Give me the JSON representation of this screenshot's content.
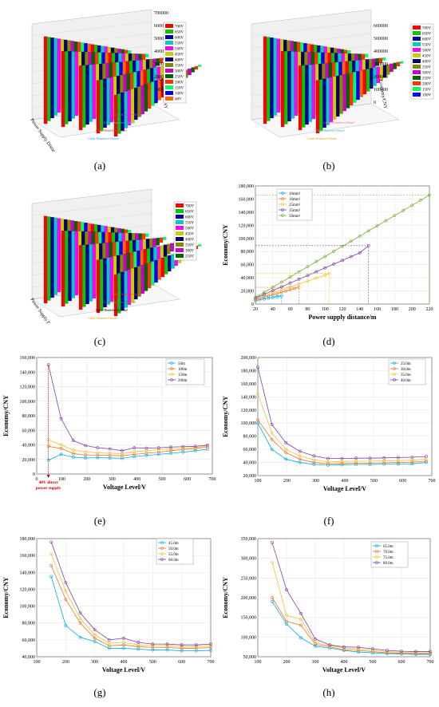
{
  "panel_labels": [
    "(a)",
    "(b)",
    "(c)",
    "(d)",
    "(e)",
    "(f)",
    "(g)",
    "(h)"
  ],
  "chart_data": [
    {
      "type": "bar3d",
      "panel": "(a)",
      "ylabel": "Economy/CNY",
      "xlabel": "Power Supply Distance/m",
      "zticks": [
        "0",
        "100000",
        "200000",
        "300000",
        "400000",
        "500000",
        "600000",
        "700000"
      ],
      "legend": [
        "700V",
        "650V",
        "600V",
        "550V",
        "500V",
        "450V",
        "400V",
        "350V",
        "300V",
        "250V",
        "200V",
        "150V",
        "100V",
        "48V"
      ],
      "annotations": [
        {
          "text": "Cable Diameter=16mm²",
          "color": "#3399ff"
        },
        {
          "text": "Cable Diameter=25mm²",
          "color": "#ff3333"
        },
        {
          "text": "Cable Diameter=35mm²",
          "color": "#33cccc"
        },
        {
          "text": "Cable Diameter=50mm²",
          "color": "#cc33cc"
        }
      ]
    },
    {
      "type": "bar3d",
      "panel": "(b)",
      "ylabel": "Economy/CNY",
      "zticks": [
        "0",
        "100000",
        "200000",
        "300000",
        "400000",
        "500000",
        "600000"
      ],
      "legend": [
        "700V",
        "650V",
        "600V",
        "550V",
        "500V",
        "450V",
        "400V",
        "350V",
        "300V",
        "250V",
        "200V",
        "150V",
        "100V"
      ],
      "annotations": [
        {
          "text": "Cable Diameter=4mm²",
          "color": "#ff9900"
        },
        {
          "text": "Cable Diameter=6mm²",
          "color": "#33cccc"
        },
        {
          "text": "Cable Diameter=10mm²",
          "color": "#ff66cc"
        }
      ]
    },
    {
      "type": "bar3d",
      "panel": "(c)",
      "xlabel": "Power Supply Distance/m",
      "legend": [
        "700V",
        "650V",
        "600V",
        "550V",
        "500V",
        "450V",
        "400V",
        "350V",
        "300V",
        "250V"
      ],
      "annotations": [
        {
          "text": "Cable Diameter=4mm²",
          "color": "#ff9900"
        },
        {
          "text": "Cable Diameter=2.5mm²",
          "color": "#000000"
        },
        {
          "text": "Cable Diameter=1.5mm²",
          "color": "#33aa33"
        },
        {
          "text": "Cable Diameter=1mm²",
          "color": "#ff3333"
        }
      ]
    },
    {
      "type": "line",
      "panel": "(d)",
      "xlabel": "Power supply distance/m",
      "ylabel": "Economy/CNY",
      "xlim": [
        20,
        220
      ],
      "ylim": [
        0,
        180000
      ],
      "xticks": [
        "20",
        "40",
        "60",
        "80",
        "100",
        "120",
        "140",
        "160",
        "180",
        "200",
        "220"
      ],
      "yticks": [
        "0",
        "20,000",
        "40,000",
        "60,000",
        "80,000",
        "100,000",
        "120,000",
        "140,000",
        "160,000",
        "180,000"
      ],
      "legend_position": "top-left",
      "series": [
        {
          "name": "10mm²",
          "color": "#00aaee",
          "x": [
            20,
            25,
            30,
            35,
            40,
            45,
            50
          ],
          "y": [
            5200,
            6500,
            7700,
            8800,
            10000,
            11200,
            12300
          ]
        },
        {
          "name": "16mm²",
          "color": "#e8772e",
          "x": [
            20,
            25,
            30,
            35,
            40,
            45,
            50,
            55,
            60,
            65,
            70
          ],
          "y": [
            6500,
            8400,
            10300,
            12200,
            14100,
            16000,
            17900,
            19800,
            21700,
            23600,
            25500
          ]
        },
        {
          "name": "25mm²",
          "color": "#f2c12e",
          "x": [
            20,
            30,
            40,
            50,
            60,
            70,
            80,
            90,
            100,
            105
          ],
          "y": [
            8000,
            12500,
            17000,
            21500,
            26000,
            30500,
            35000,
            39500,
            44000,
            47000
          ]
        },
        {
          "name": "35mm²",
          "color": "#7e3fa8",
          "x": [
            20,
            30,
            40,
            50,
            60,
            70,
            80,
            90,
            100,
            110,
            120,
            130,
            140,
            150
          ],
          "y": [
            9000,
            14800,
            20500,
            26200,
            32000,
            37800,
            43500,
            49200,
            55000,
            60800,
            66500,
            72300,
            78000,
            89000
          ]
        },
        {
          "name": "50mm²",
          "color": "#77ac30",
          "x": [
            20,
            30,
            40,
            50,
            60,
            70,
            80,
            90,
            100,
            110,
            120,
            130,
            140,
            150,
            160,
            170,
            180,
            190,
            200,
            210,
            220
          ],
          "y": [
            10000,
            17800,
            25600,
            33400,
            41200,
            49000,
            56800,
            64600,
            72400,
            80200,
            88000,
            95800,
            103600,
            111400,
            119200,
            127000,
            134800,
            142600,
            150400,
            158200,
            166000
          ]
        }
      ]
    },
    {
      "type": "line",
      "panel": "(e)",
      "xlabel": "Voltage Level/V",
      "ylabel": "Economy/CNY",
      "xlim": [
        0,
        720
      ],
      "ylim": [
        0,
        160000
      ],
      "xticks": [
        "0",
        "100",
        "200",
        "300",
        "400",
        "500",
        "600",
        "700"
      ],
      "yticks": [
        "0",
        "20,000",
        "40,000",
        "60,000",
        "80,000",
        "100,000",
        "120,000",
        "140,000",
        "160,000"
      ],
      "annotation": {
        "text": [
          "48V direct",
          "power supply"
        ],
        "color": "#cc0000"
      },
      "legend_position": "top-right",
      "x": [
        48,
        100,
        150,
        200,
        250,
        300,
        350,
        400,
        450,
        500,
        550,
        600,
        650,
        700
      ],
      "series": [
        {
          "name": "50m",
          "color": "#00aaee",
          "y": [
            19000,
            27000,
            23000,
            22000,
            22500,
            22000,
            21500,
            24000,
            25500,
            27000,
            28500,
            30000,
            32000,
            34000
          ]
        },
        {
          "name": "100m",
          "color": "#e8772e",
          "y": [
            38000,
            35000,
            28000,
            26000,
            26000,
            25500,
            25000,
            27000,
            28500,
            30000,
            32000,
            33500,
            35000,
            37000
          ]
        },
        {
          "name": "150m",
          "color": "#f2c12e",
          "y": [
            47000,
            40000,
            33000,
            30000,
            29000,
            28500,
            28000,
            30500,
            32000,
            33500,
            34500,
            35500,
            36500,
            38500
          ]
        },
        {
          "name": "200m",
          "color": "#7e3fa8",
          "y": [
            150000,
            76000,
            46000,
            39000,
            36000,
            34500,
            32000,
            36000,
            35500,
            36000,
            37000,
            37500,
            38000,
            39500
          ]
        }
      ]
    },
    {
      "type": "line",
      "panel": "(f)",
      "xlabel": "Voltage Level/V",
      "ylabel": "Economy/CNY",
      "xlim": [
        100,
        720
      ],
      "ylim": [
        20000,
        200000
      ],
      "xticks": [
        "100",
        "200",
        "300",
        "400",
        "500",
        "600",
        "700"
      ],
      "yticks": [
        "20,000",
        "40,000",
        "60,000",
        "80,000",
        "100,000",
        "120,000",
        "140,000",
        "160,000",
        "180,000",
        "200,000"
      ],
      "legend_position": "top-right",
      "x": [
        100,
        150,
        200,
        250,
        300,
        350,
        400,
        450,
        500,
        550,
        600,
        650,
        700
      ],
      "series": [
        {
          "name": "25.0m",
          "color": "#00aaee",
          "y": [
            100000,
            60000,
            45000,
            40000,
            37000,
            36000,
            36500,
            37000,
            37000,
            37500,
            37500,
            38000,
            40000
          ]
        },
        {
          "name": "30.0m",
          "color": "#e8772e",
          "y": [
            105000,
            75000,
            55000,
            45000,
            40000,
            38000,
            38500,
            39000,
            39000,
            39500,
            40000,
            40500,
            42000
          ]
        },
        {
          "name": "35.0m",
          "color": "#f2c12e",
          "y": [
            145000,
            85000,
            60000,
            50000,
            44000,
            41000,
            41500,
            42000,
            42000,
            42500,
            43000,
            43500,
            45000
          ]
        },
        {
          "name": "40.0m",
          "color": "#7e3fa8",
          "y": [
            185000,
            98000,
            70000,
            57000,
            50000,
            46000,
            46000,
            46500,
            46500,
            47000,
            47500,
            48000,
            49000
          ]
        }
      ]
    },
    {
      "type": "line",
      "panel": "(g)",
      "xlabel": "Voltage Level/V",
      "ylabel": "Economy/CNY",
      "xlim": [
        100,
        700
      ],
      "ylim": [
        40000,
        180000
      ],
      "xticks": [
        "100",
        "200",
        "300",
        "400",
        "500",
        "600",
        "700"
      ],
      "yticks": [
        "40,000",
        "60,000",
        "80,000",
        "100,000",
        "120,000",
        "140,000",
        "160,000",
        "180,000"
      ],
      "legend_position": "top-right",
      "x": [
        150,
        200,
        250,
        300,
        350,
        400,
        450,
        500,
        550,
        600,
        650,
        700
      ],
      "series": [
        {
          "name": "45.0m",
          "color": "#00aaee",
          "y": [
            135000,
            77000,
            63000,
            58000,
            50000,
            50000,
            49000,
            48000,
            48000,
            47000,
            47000,
            47500
          ]
        },
        {
          "name": "50.0m",
          "color": "#e8772e",
          "y": [
            148000,
            108000,
            80000,
            62000,
            53000,
            54000,
            52000,
            51000,
            51000,
            50000,
            50000,
            51000
          ]
        },
        {
          "name": "55.0m",
          "color": "#f2c12e",
          "y": [
            162000,
            118000,
            85000,
            66000,
            56000,
            57000,
            54000,
            53000,
            53000,
            52000,
            52000,
            53000
          ]
        },
        {
          "name": "60.0m",
          "color": "#7e3fa8",
          "y": [
            176000,
            128000,
            92000,
            72000,
            60000,
            62000,
            57000,
            55000,
            55000,
            54000,
            54000,
            55000
          ]
        }
      ]
    },
    {
      "type": "line",
      "panel": "(h)",
      "xlabel": "Voltage Level/V",
      "ylabel": "Economy/CNY",
      "xlim": [
        100,
        700
      ],
      "ylim": [
        50000,
        350000
      ],
      "xticks": [
        "100",
        "200",
        "300",
        "400",
        "500",
        "600",
        "700"
      ],
      "yticks": [
        "50,000",
        "100,000",
        "150,000",
        "200,000",
        "250,000",
        "300,000",
        "350,000"
      ],
      "legend_position": "top-right",
      "x": [
        150,
        200,
        250,
        300,
        350,
        400,
        450,
        500,
        550,
        600,
        650,
        700
      ],
      "series": [
        {
          "name": "65.0m",
          "color": "#00aaee",
          "y": [
            190000,
            133000,
            98000,
            77000,
            72000,
            66000,
            62000,
            60000,
            58000,
            57000,
            56000,
            56000
          ]
        },
        {
          "name": "70.0m",
          "color": "#e8772e",
          "y": [
            200000,
            140000,
            130000,
            82000,
            75000,
            68000,
            66000,
            63000,
            60000,
            59000,
            58000,
            58000
          ]
        },
        {
          "name": "75.0m",
          "color": "#f2c12e",
          "y": [
            290000,
            155000,
            145000,
            86000,
            78000,
            72000,
            70000,
            66000,
            63000,
            61000,
            60000,
            60000
          ]
        },
        {
          "name": "80.0m",
          "color": "#7e3fa8",
          "y": [
            340000,
            220000,
            160000,
            95000,
            80000,
            75000,
            74000,
            70000,
            66000,
            64000,
            63000,
            63000
          ]
        }
      ]
    }
  ],
  "bar_colors": [
    "#ff0000",
    "#00cc00",
    "#000099",
    "#00cccc",
    "#ff00ff",
    "#cccc00",
    "#000066",
    "#888800",
    "#cc00cc",
    "#006600",
    "#ff3300",
    "#00ff66",
    "#0000ff",
    "#ff6600"
  ]
}
